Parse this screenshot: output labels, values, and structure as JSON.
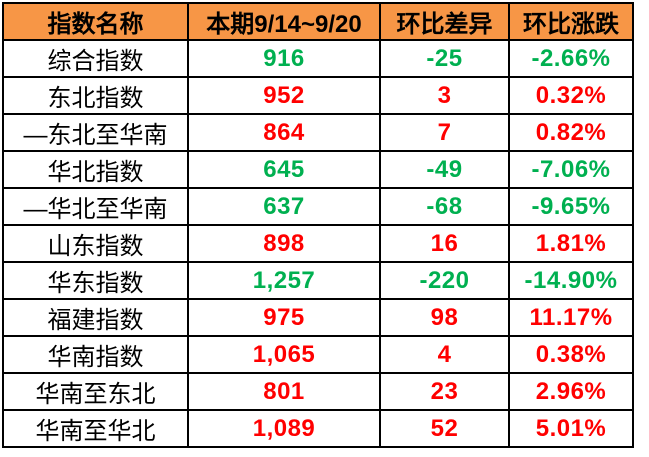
{
  "colors": {
    "header_bg": "#F79646",
    "border": "#000000",
    "up_red": "#FF0000",
    "down_green": "#00B050",
    "header_text": "#000000",
    "row_bg": "#FFFFFF"
  },
  "table": {
    "headers": [
      "指数名称",
      "本期9/14~9/20",
      "环比差异",
      "环比涨跌"
    ],
    "rows": [
      {
        "name": "综合指数",
        "current": "916",
        "diff": "-25",
        "change": "-2.66%",
        "trend": "down"
      },
      {
        "name": "东北指数",
        "current": "952",
        "diff": "3",
        "change": "0.32%",
        "trend": "up"
      },
      {
        "name": "—东北至华南",
        "current": "864",
        "diff": "7",
        "change": "0.82%",
        "trend": "up"
      },
      {
        "name": "华北指数",
        "current": "645",
        "diff": "-49",
        "change": "-7.06%",
        "trend": "down"
      },
      {
        "name": "—华北至华南",
        "current": "637",
        "diff": "-68",
        "change": "-9.65%",
        "trend": "down"
      },
      {
        "name": "山东指数",
        "current": "898",
        "diff": "16",
        "change": "1.81%",
        "trend": "up"
      },
      {
        "name": "华东指数",
        "current": "1,257",
        "diff": "-220",
        "change": "-14.90%",
        "trend": "down"
      },
      {
        "name": "福建指数",
        "current": "975",
        "diff": "98",
        "change": "11.17%",
        "trend": "up"
      },
      {
        "name": "华南指数",
        "current": "1,065",
        "diff": "4",
        "change": "0.38%",
        "trend": "up"
      },
      {
        "name": "华南至东北",
        "current": "801",
        "diff": "23",
        "change": "2.96%",
        "trend": "up"
      },
      {
        "name": "华南至华北",
        "current": "1,089",
        "diff": "52",
        "change": "5.01%",
        "trend": "up"
      }
    ]
  },
  "chart_data": {
    "type": "table",
    "columns": [
      "指数名称",
      "本期9/14~9/20",
      "环比差异",
      "环比涨跌"
    ],
    "rows": [
      [
        "综合指数",
        916,
        -25,
        -2.66
      ],
      [
        "东北指数",
        952,
        3,
        0.32
      ],
      [
        "—东北至华南",
        864,
        7,
        0.82
      ],
      [
        "华北指数",
        645,
        -49,
        -7.06
      ],
      [
        "—华北至华南",
        637,
        -68,
        -9.65
      ],
      [
        "山东指数",
        898,
        16,
        1.81
      ],
      [
        "华东指数",
        1257,
        -220,
        -14.9
      ],
      [
        "福建指数",
        975,
        98,
        11.17
      ],
      [
        "华南指数",
        1065,
        4,
        0.38
      ],
      [
        "华南至东北",
        801,
        23,
        2.96
      ],
      [
        "华南至华北",
        1089,
        52,
        5.01
      ]
    ],
    "notes": "change column is percent; positive values rendered red (up), negative values rendered green (down)"
  }
}
